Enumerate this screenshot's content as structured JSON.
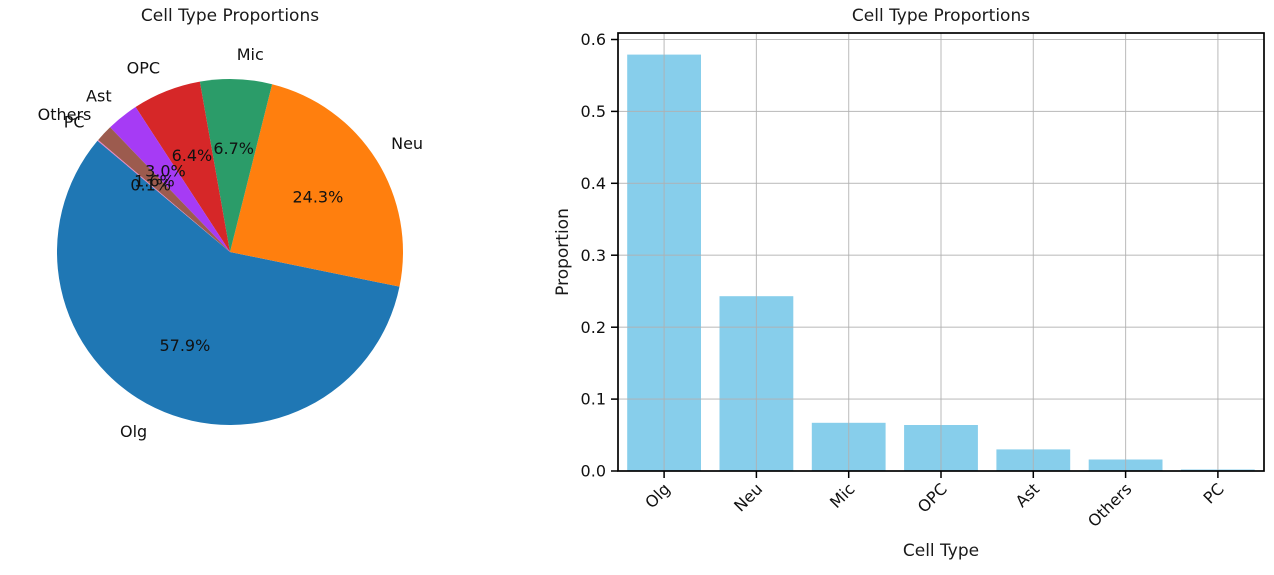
{
  "figure": {
    "background": "#ffffff"
  },
  "chart_data": [
    {
      "type": "pie",
      "title": "Cell Type Proportions",
      "labels": [
        "Olg",
        "Neu",
        "Mic",
        "OPC",
        "Ast",
        "Others",
        "PC"
      ],
      "values": [
        0.579,
        0.243,
        0.067,
        0.064,
        0.03,
        0.016,
        0.001
      ],
      "pct_labels": [
        "57.9%",
        "24.3%",
        "6.7%",
        "6.4%",
        "3.0%",
        "1.6%",
        "0.1%"
      ],
      "colors": [
        "#1f77b4",
        "#ff7f0e",
        "#2b9c69",
        "#d62728",
        "#a63bf5",
        "#9c5b4e",
        "#e57fc0"
      ],
      "start_angle": 140,
      "direction": "counterclockwise",
      "label_distance": 1.1,
      "pct_distance": 0.6,
      "legend": "none"
    },
    {
      "type": "bar",
      "title": "Cell Type Proportions",
      "xlabel": "Cell Type",
      "ylabel": "Proportion",
      "categories": [
        "Olg",
        "Neu",
        "Mic",
        "OPC",
        "Ast",
        "Others",
        "PC"
      ],
      "values": [
        0.579,
        0.243,
        0.067,
        0.064,
        0.03,
        0.016,
        0.001
      ],
      "bar_color": "#87ceeb",
      "ylim": [
        0,
        0.609
      ],
      "yticks": [
        0,
        0.1,
        0.2,
        0.3,
        0.4,
        0.5,
        0.6
      ],
      "ytick_labels": [
        "0.0",
        "0.1",
        "0.2",
        "0.3",
        "0.4",
        "0.5",
        "0.6"
      ],
      "grid": true,
      "xtick_rotation": 45,
      "legend": "none"
    }
  ]
}
